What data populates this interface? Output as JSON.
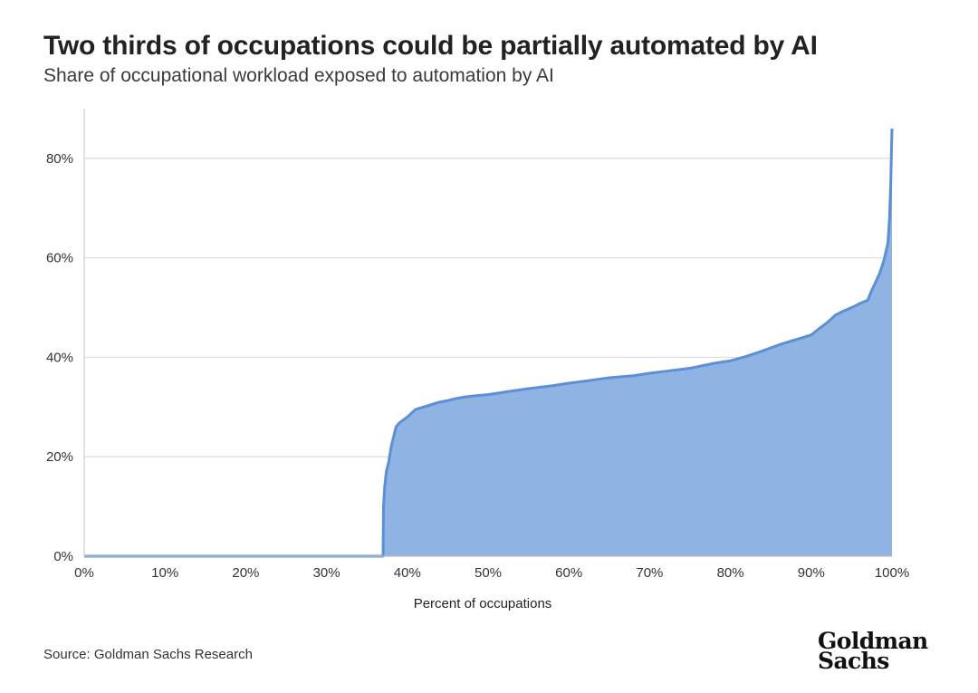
{
  "header": {
    "title": "Two thirds of occupations could be partially automated by AI",
    "subtitle": "Share of occupational workload exposed to automation by AI"
  },
  "footer": {
    "source": "Source: Goldman Sachs Research",
    "logo_line1": "Goldman",
    "logo_line2": "Sachs"
  },
  "colors": {
    "area_fill": "#8fb3e2",
    "line": "#5b8fd6",
    "grid": "#dcdcdc",
    "axis": "#cfcfcf"
  },
  "chart_data": {
    "type": "area",
    "title": "Two thirds of occupations could be partially automated by AI",
    "subtitle": "Share of occupational workload exposed to automation by AI",
    "xlabel": "Percent of occupations",
    "ylabel": "",
    "xlim": [
      0,
      100
    ],
    "ylim": [
      0,
      90
    ],
    "x_ticks": [
      "0%",
      "10%",
      "20%",
      "30%",
      "40%",
      "50%",
      "60%",
      "70%",
      "80%",
      "90%",
      "100%"
    ],
    "y_ticks": [
      "0%",
      "20%",
      "40%",
      "60%",
      "80%"
    ],
    "x_tick_values": [
      0,
      10,
      20,
      30,
      40,
      50,
      60,
      70,
      80,
      90,
      100
    ],
    "y_tick_values": [
      0,
      20,
      40,
      60,
      80
    ],
    "grid": "horizontal",
    "legend": "none",
    "series": [
      {
        "x": [
          0,
          37,
          37.05,
          37.2,
          37.4,
          37.7,
          38.0,
          38.3,
          38.6,
          39.0,
          39.5,
          40,
          41,
          42,
          43,
          44,
          45,
          46,
          47,
          48,
          50,
          52,
          55,
          58,
          60,
          62,
          65,
          68,
          70,
          72,
          75,
          78,
          80,
          82,
          84,
          86,
          88,
          90,
          91,
          92,
          93,
          94,
          95,
          96,
          97,
          97.5,
          98,
          98.5,
          99,
          99.5,
          99.7,
          99.85,
          100
        ],
        "y": [
          0,
          0,
          10,
          14,
          17,
          19,
          22,
          24,
          26,
          26.8,
          27.4,
          28,
          29.5,
          30,
          30.5,
          31,
          31.3,
          31.7,
          32,
          32.2,
          32.5,
          33,
          33.7,
          34.3,
          34.8,
          35.2,
          35.9,
          36.3,
          36.8,
          37.2,
          37.8,
          38.8,
          39.3,
          40.2,
          41.3,
          42.5,
          43.5,
          44.5,
          45.8,
          47,
          48.5,
          49.3,
          50,
          50.8,
          51.5,
          53.5,
          55.2,
          57,
          59.5,
          63,
          68,
          75,
          86
        ]
      }
    ]
  }
}
